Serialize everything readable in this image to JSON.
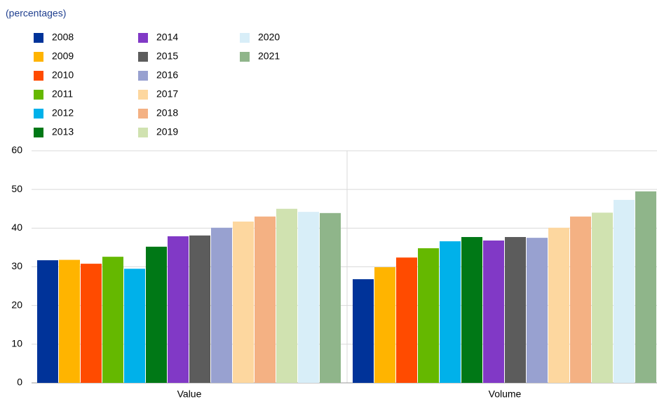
{
  "chart_data": {
    "type": "bar",
    "subtitle": "(percentages)",
    "categories": [
      "Value",
      "Volume"
    ],
    "series": [
      {
        "name": "2008",
        "color": "#003399",
        "values": [
          31.7,
          26.8
        ]
      },
      {
        "name": "2009",
        "color": "#ffb400",
        "values": [
          31.8,
          29.9
        ]
      },
      {
        "name": "2010",
        "color": "#ff4b00",
        "values": [
          30.8,
          32.4
        ]
      },
      {
        "name": "2011",
        "color": "#65b800",
        "values": [
          32.6,
          34.8
        ]
      },
      {
        "name": "2012",
        "color": "#00b1ea",
        "values": [
          29.5,
          36.6
        ]
      },
      {
        "name": "2013",
        "color": "#007816",
        "values": [
          35.2,
          37.7
        ]
      },
      {
        "name": "2014",
        "color": "#8139c6",
        "values": [
          37.9,
          36.8
        ]
      },
      {
        "name": "2015",
        "color": "#5c5c5c",
        "values": [
          38.1,
          37.7
        ]
      },
      {
        "name": "2016",
        "color": "#98a1d0",
        "values": [
          40.1,
          37.5
        ]
      },
      {
        "name": "2017",
        "color": "#fdd79f",
        "values": [
          41.7,
          40.1
        ]
      },
      {
        "name": "2018",
        "color": "#f4b183",
        "values": [
          43.0,
          43.0
        ]
      },
      {
        "name": "2019",
        "color": "#d0e2b0",
        "values": [
          45.0,
          44.0
        ]
      },
      {
        "name": "2020",
        "color": "#d8eef8",
        "values": [
          44.2,
          47.3
        ]
      },
      {
        "name": "2021",
        "color": "#8fb58a",
        "values": [
          43.9,
          49.5
        ]
      }
    ],
    "ylim": [
      0,
      60
    ],
    "yticks": [
      0,
      10,
      20,
      30,
      40,
      50,
      60
    ],
    "grid": true
  }
}
